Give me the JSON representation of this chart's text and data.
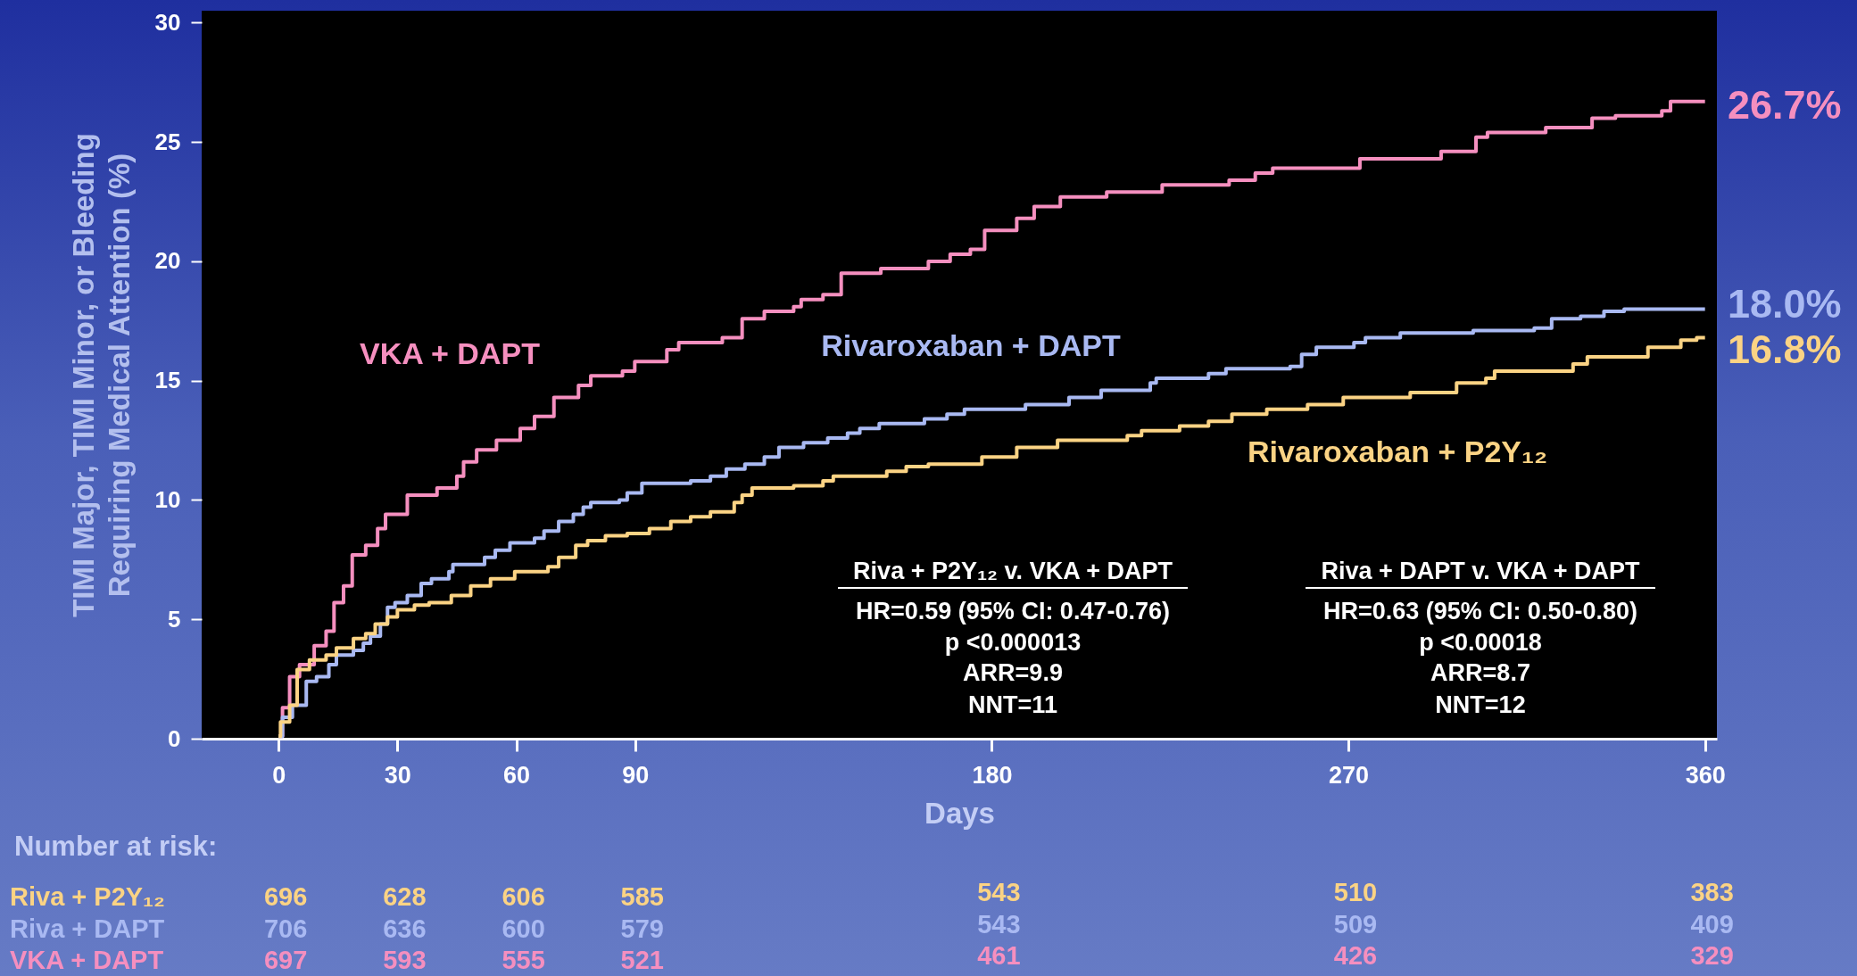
{
  "chart_data": {
    "type": "step",
    "xlabel": "Days",
    "ylabel": "TIMI Major, TIMI Minor, or Bleeding\nRequiring Medical Attention (%)",
    "xlim": [
      -19.4,
      363
    ],
    "ylim": [
      0,
      30.5
    ],
    "xticks": [
      0,
      30,
      60,
      90,
      180,
      270,
      360
    ],
    "yticks": [
      0,
      5,
      10,
      15,
      20,
      25,
      30
    ],
    "grid": false,
    "series": [
      {
        "name": "VKA + DAPT",
        "color": "#f58fbf",
        "x": [
          0,
          1,
          2.8,
          5.3,
          9,
          12,
          14,
          16.4,
          18.6,
          22,
          25,
          27,
          32.5,
          40,
          45,
          46.7,
          50,
          55,
          61,
          64.6,
          69.5,
          75.7,
          78.8,
          86.8,
          89.9,
          98,
          101,
          112,
          117,
          122.6,
          130,
          131.9,
          137.4,
          142,
          152,
          164,
          169.5,
          174.6,
          178.2,
          186.3,
          190.7,
          197.3,
          209,
          223,
          239.9,
          246.5,
          250.9,
          272.9,
          293.4,
          302.2,
          305.1,
          319.8,
          331.5,
          337.4,
          349.1,
          351.3,
          360
        ],
        "values": [
          0.1,
          1.3,
          2.6,
          3.1,
          3.9,
          4.5,
          5.7,
          6.4,
          7.7,
          8.1,
          8.8,
          9.4,
          10.2,
          10.5,
          11,
          11.6,
          12.1,
          12.5,
          13,
          13.5,
          14.3,
          14.8,
          15.2,
          15.4,
          15.8,
          16.3,
          16.6,
          16.8,
          17.6,
          17.9,
          18.1,
          18.4,
          18.6,
          19.5,
          19.7,
          20,
          20.3,
          20.5,
          21.3,
          21.8,
          22.3,
          22.7,
          22.9,
          23.2,
          23.4,
          23.7,
          23.9,
          24.3,
          24.6,
          25.2,
          25.4,
          25.6,
          26,
          26.1,
          26.3,
          26.7,
          26.7
        ]
      },
      {
        "name": "Rivaroxaban + DAPT",
        "color": "#a9b9f2",
        "x": [
          0,
          1,
          3.5,
          7,
          9.6,
          12.7,
          14.6,
          18.9,
          21.4,
          23.2,
          25.7,
          27.5,
          29.4,
          32.5,
          36,
          38.6,
          43,
          44,
          52,
          54.7,
          58.4,
          64.6,
          67,
          70.7,
          74.4,
          76.9,
          78.8,
          86,
          88,
          91.7,
          104,
          109,
          113,
          117.7,
          122.6,
          126.3,
          132.5,
          138.6,
          143.6,
          146.7,
          151.6,
          163,
          168.7,
          173.1,
          188.5,
          199.5,
          207.6,
          220,
          221.5,
          234.7,
          239.1,
          255.3,
          258.2,
          261.9,
          271.4,
          274.3,
          283.1,
          301.5,
          316.9,
          321.3,
          328.6,
          334.5,
          339.6,
          360
        ],
        "values": [
          0.1,
          0.9,
          1.4,
          2.4,
          2.6,
          3.1,
          3.5,
          3.7,
          4,
          4.3,
          4.8,
          5.5,
          5.7,
          6,
          6.5,
          6.7,
          7,
          7.3,
          7.6,
          7.9,
          8.2,
          8.4,
          8.7,
          9.1,
          9.4,
          9.7,
          9.9,
          10,
          10.3,
          10.7,
          10.8,
          11,
          11.3,
          11.5,
          11.8,
          12.2,
          12.4,
          12.6,
          12.8,
          13,
          13.2,
          13.4,
          13.6,
          13.8,
          14,
          14.3,
          14.6,
          14.9,
          15.1,
          15.3,
          15.5,
          15.6,
          16.1,
          16.4,
          16.6,
          16.8,
          17,
          17.1,
          17.2,
          17.6,
          17.7,
          17.9,
          18,
          18
        ]
      },
      {
        "name": "Rivaroxaban + P2Y₁₂",
        "color": "#fbd384",
        "x": [
          0,
          0.5,
          2.8,
          4.7,
          7.8,
          12,
          14.6,
          18.9,
          22,
          24.4,
          27.5,
          30,
          34.3,
          38,
          43.6,
          48.5,
          53.5,
          59.6,
          68,
          70.7,
          75,
          78,
          82.5,
          88,
          93.6,
          99,
          104,
          109,
          115,
          117,
          119.5,
          130,
          137.4,
          140,
          153.5,
          158.4,
          164,
          168.7,
          177.5,
          186.3,
          196.6,
          214.2,
          217.8,
          227.4,
          234.7,
          240.6,
          249.4,
          259.7,
          268.7,
          285.6,
          297.3,
          304.7,
          306.9,
          326.7,
          330.3,
          345.6,
          353.9,
          357.9,
          360
        ],
        "values": [
          0.1,
          0.7,
          1.4,
          2.9,
          3.3,
          3.5,
          3.8,
          4.2,
          4.4,
          4.8,
          5.1,
          5.4,
          5.6,
          5.7,
          6,
          6.4,
          6.7,
          7,
          7.2,
          7.6,
          8.1,
          8.3,
          8.5,
          8.6,
          8.8,
          9.1,
          9.3,
          9.5,
          9.9,
          10.2,
          10.5,
          10.6,
          10.8,
          11,
          11.2,
          11.4,
          11.5,
          11.5,
          11.8,
          12.2,
          12.5,
          12.7,
          12.9,
          13.1,
          13.3,
          13.6,
          13.8,
          14,
          14.3,
          14.5,
          14.9,
          15.1,
          15.4,
          15.7,
          16,
          16.4,
          16.7,
          16.8,
          16.8
        ]
      }
    ],
    "annotations": [
      "Riva + P2Y₁₂ v. VKA + DAPT",
      "HR=0.59 (95% CI: 0.47-0.76)",
      "p <0.000013",
      "ARR=9.9",
      "NNT=11",
      "Riva + DAPT v. VKA + DAPT",
      "HR=0.63 (95% CI: 0.50-0.80)",
      "p <0.00018",
      "ARR=8.7",
      "NNT=12",
      "26.7%",
      "18.0%",
      "16.8%",
      "Number at risk:",
      "Riva + P2Y₁₂",
      "696",
      "628",
      "606",
      "585",
      "543",
      "510",
      "383",
      "Riva + DAPT",
      "706",
      "636",
      "600",
      "579",
      "543",
      "509",
      "409",
      "VKA + DAPT",
      "697",
      "593",
      "555",
      "521",
      "461",
      "426",
      "329"
    ]
  }
}
